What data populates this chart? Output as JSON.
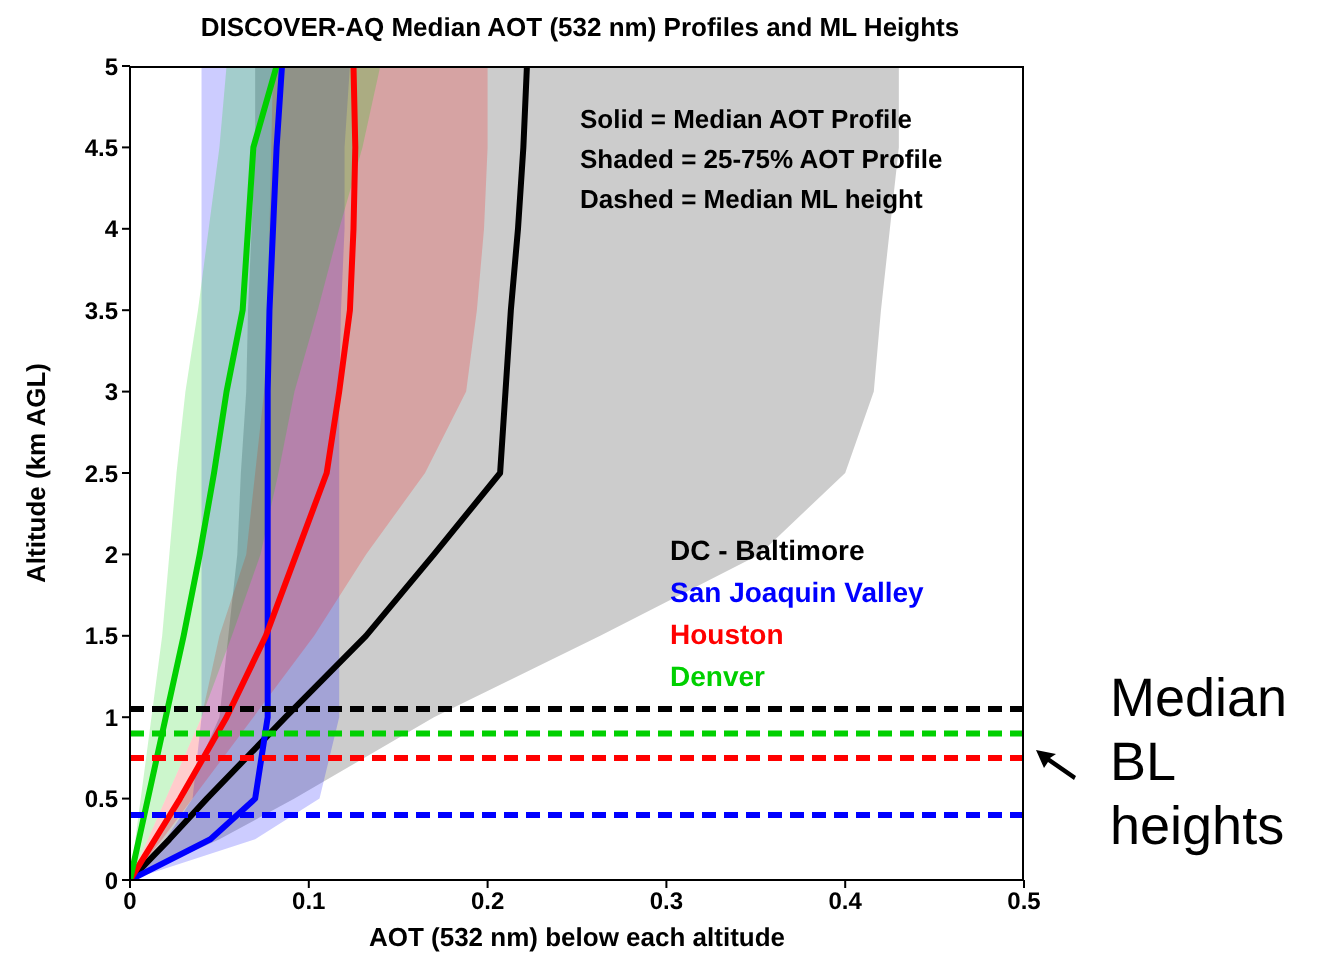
{
  "chart_data": {
    "type": "line",
    "orientation": "horizontal",
    "title": "DISCOVER-AQ Median AOT (532 nm) Profiles and ML Heights",
    "xlabel": "AOT (532 nm) below each altitude",
    "ylabel": "Altitude (km AGL)",
    "x": [
      0,
      0.25,
      0.5,
      1,
      1.5,
      2,
      2.5,
      3,
      3.5,
      4,
      4.5,
      5
    ],
    "series": [
      {
        "name": "DC - Baltimore",
        "color": "#000000",
        "values": [
          0,
          0.022,
          0.043,
          0.087,
          0.132,
          0.17,
          0.207,
          0.21,
          0.213,
          0.217,
          0.22,
          0.222
        ],
        "lower": [
          0,
          0.015,
          0.03,
          0.05,
          0.055,
          0.06,
          0.062,
          0.065,
          0.066,
          0.068,
          0.07,
          0.07
        ],
        "upper": [
          0,
          0.05,
          0.092,
          0.17,
          0.263,
          0.352,
          0.4,
          0.416,
          0.42,
          0.425,
          0.43,
          0.43
        ]
      },
      {
        "name": "San Joaquin Valley",
        "color": "#0000ff",
        "values": [
          0,
          0.045,
          0.07,
          0.077,
          0.077,
          0.077,
          0.077,
          0.077,
          0.078,
          0.08,
          0.082,
          0.085
        ],
        "lower": [
          0,
          0.02,
          0.035,
          0.04,
          0.04,
          0.04,
          0.04,
          0.04,
          0.04,
          0.04,
          0.04,
          0.04
        ],
        "upper": [
          0,
          0.07,
          0.106,
          0.117,
          0.117,
          0.117,
          0.117,
          0.117,
          0.118,
          0.12,
          0.12,
          0.123
        ]
      },
      {
        "name": "Houston",
        "color": "#ff0000",
        "values": [
          0,
          0.014,
          0.028,
          0.054,
          0.076,
          0.093,
          0.11,
          0.117,
          0.123,
          0.125,
          0.126,
          0.125
        ],
        "lower": [
          0,
          0.01,
          0.02,
          0.04,
          0.05,
          0.065,
          0.07,
          0.075,
          0.077,
          0.078,
          0.079,
          0.08
        ],
        "upper": [
          0,
          0.018,
          0.035,
          0.069,
          0.103,
          0.132,
          0.165,
          0.188,
          0.194,
          0.198,
          0.2,
          0.2
        ]
      },
      {
        "name": "Denver",
        "color": "#00d000",
        "values": [
          0,
          0.005,
          0.01,
          0.02,
          0.03,
          0.039,
          0.047,
          0.054,
          0.063,
          0.066,
          0.069,
          0.082
        ],
        "lower": [
          0,
          0.003,
          0.006,
          0.012,
          0.018,
          0.022,
          0.026,
          0.031,
          0.038,
          0.044,
          0.05,
          0.054
        ],
        "upper": [
          0,
          0.01,
          0.02,
          0.04,
          0.057,
          0.073,
          0.083,
          0.092,
          0.105,
          0.117,
          0.13,
          0.14
        ]
      }
    ],
    "xlim": [
      0,
      0.5
    ],
    "xticks": [
      0,
      0.1,
      0.2,
      0.3,
      0.4,
      0.5
    ],
    "ylim": [
      0,
      5
    ],
    "yticks": [
      0,
      0.5,
      1,
      1.5,
      2,
      2.5,
      3,
      3.5,
      4,
      4.5,
      5
    ],
    "ref_lines": [
      {
        "axis": "y",
        "value": 1.05,
        "color": "#000000",
        "line_style": "dashed"
      },
      {
        "axis": "y",
        "value": 0.9,
        "color": "#00d000",
        "line_style": "dashed"
      },
      {
        "axis": "y",
        "value": 0.75,
        "color": "#ff0000",
        "line_style": "dashed"
      },
      {
        "axis": "y",
        "value": 0.4,
        "color": "#0000ff",
        "line_style": "dashed"
      }
    ],
    "annotations": [
      "Solid = Median AOT Profile",
      "Shaded = 25-75% AOT Profile",
      "Dashed = Median ML height",
      "Median BL heights"
    ],
    "legend": "right",
    "marker": "none",
    "line_style": "solid"
  }
}
